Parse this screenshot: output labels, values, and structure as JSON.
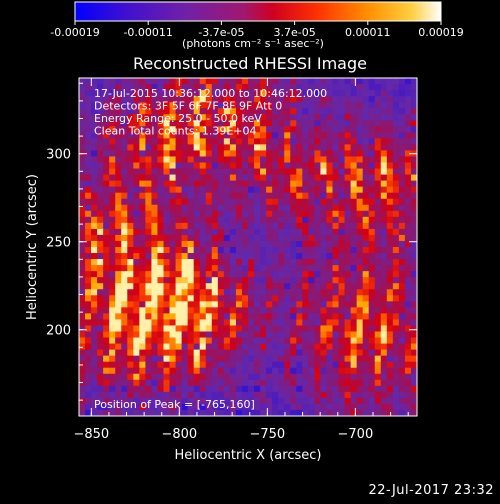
{
  "chart_data": {
    "type": "heatmap",
    "title": "Reconstructed RHESSI Image",
    "xlabel": "Heliocentric X (arcsec)",
    "ylabel": "Heliocentric Y (arcsec)",
    "xlim": [
      -857,
      -665
    ],
    "ylim": [
      151,
      343
    ],
    "x_ticks": [
      -850,
      -800,
      -750,
      -700
    ],
    "y_ticks": [
      200,
      250,
      300
    ],
    "grid": false,
    "annotations": [
      "17-Jul-2015 10:36:12.000 to 10:46:12.000",
      "Detectors: 3F 5F 6F 7F 8F 9F  Att 0",
      "Energy Range: 25.0 - 50.0 keV",
      "Clean     Total counts: 1.39E+04"
    ],
    "peak_annotation": "Position of Peak = [-765,160]",
    "colorbar": {
      "ticks": [
        "-0.00019",
        "-0.00011",
        "-3.7e-05",
        "3.7e-05",
        "0.00011",
        "0.00019"
      ],
      "min": -0.00019,
      "max": 0.00019,
      "units": "(photons cm⁻² s⁻¹ asec⁻²)",
      "colors": [
        "#0000ff",
        "#5a00b8",
        "#7a20a0",
        "#c00030",
        "#ff4000",
        "#ff9000",
        "#ffd040",
        "#ffffff"
      ]
    }
  },
  "footer": {
    "date": "22-Jul-2017 23:32"
  }
}
